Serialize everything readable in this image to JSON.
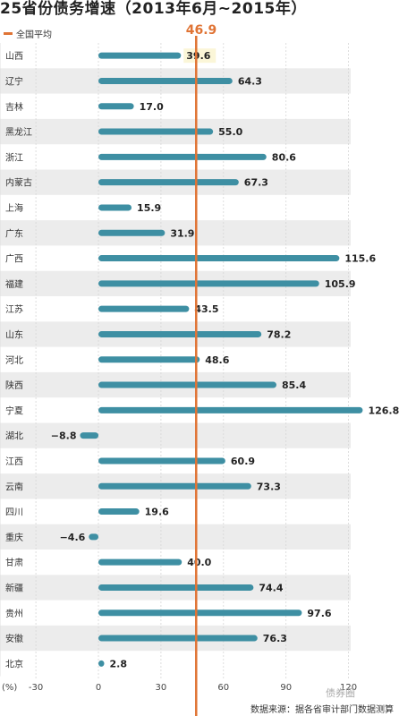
{
  "title": "25省份债务增速（2013年6月~2015年）",
  "legend": {
    "label": "全国平均",
    "color": "#e07435"
  },
  "average": {
    "value": 46.9,
    "label": "46.9"
  },
  "colors": {
    "bar": "#3e8fa3",
    "avg_line": "#e07435",
    "stripe": "#ececec",
    "label_bg": "#fbf6d8"
  },
  "axis": {
    "unit_label": "(%)",
    "ticks": [
      -30,
      0,
      30,
      60,
      90,
      120
    ]
  },
  "footer": "数据来源：据各省审计部门数据测算",
  "watermark": "债券圈",
  "chart_data": {
    "type": "bar",
    "orientation": "horizontal",
    "title": "25省份债务增速（2013年6月~2015年）",
    "xlabel": "(%)",
    "xlim": [
      -40,
      140
    ],
    "reference_line": {
      "name": "全国平均",
      "value": 46.9
    },
    "categories": [
      "山西",
      "辽宁",
      "吉林",
      "黑龙江",
      "浙江",
      "内蒙古",
      "上海",
      "广东",
      "广西",
      "福建",
      "江苏",
      "山东",
      "河北",
      "陕西",
      "宁夏",
      "湖北",
      "江西",
      "云南",
      "四川",
      "重庆",
      "甘肃",
      "新疆",
      "贵州",
      "安徽",
      "北京"
    ],
    "values": [
      39.6,
      64.3,
      17.0,
      55.0,
      80.6,
      67.3,
      15.9,
      31.9,
      115.6,
      105.9,
      43.5,
      78.2,
      48.6,
      85.4,
      126.8,
      -8.8,
      60.9,
      73.3,
      19.6,
      -4.6,
      40.0,
      74.4,
      97.6,
      76.3,
      2.8
    ],
    "value_labels": [
      "39.6",
      "64.3",
      "17.0",
      "55.0",
      "80.6",
      "67.3",
      "15.9",
      "31.9",
      "115.6",
      "105.9",
      "43.5",
      "78.2",
      "48.6",
      "85.4",
      "126.8",
      "−8.8",
      "60.9",
      "73.3",
      "19.6",
      "−4.6",
      "40.0",
      "74.4",
      "97.6",
      "76.3",
      "2.8"
    ]
  }
}
